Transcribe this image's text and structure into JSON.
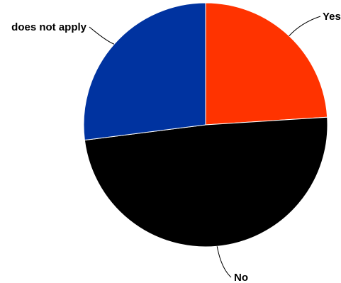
{
  "chart_data": {
    "type": "pie",
    "categories": [
      "Yes",
      "No",
      "does not apply"
    ],
    "values": [
      24,
      49,
      27
    ],
    "colors": [
      "#ff3300",
      "#000000",
      "#0033a0"
    ],
    "legend": "none",
    "labels": "outside-with-leader-lines"
  }
}
